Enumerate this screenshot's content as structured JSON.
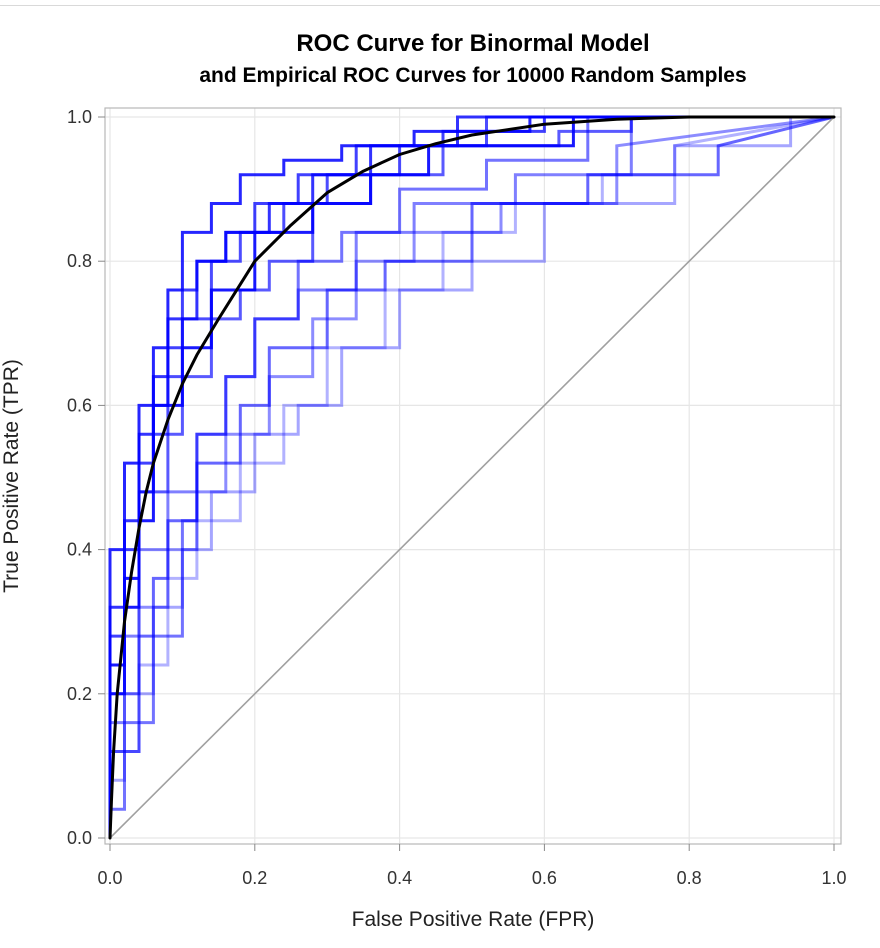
{
  "chart_data": {
    "type": "line",
    "title": "ROC Curve for Binormal Model",
    "subtitle": "and Empirical ROC Curves for 10000 Random Samples",
    "xlabel": "False Positive Rate (FPR)",
    "ylabel": "True Positive Rate (TPR)",
    "xlim": [
      0,
      1
    ],
    "ylim": [
      0,
      1
    ],
    "xticks": [
      "0.0",
      "0.2",
      "0.4",
      "0.6",
      "0.8",
      "1.0"
    ],
    "yticks": [
      "0.0",
      "0.2",
      "0.4",
      "0.6",
      "0.8",
      "1.0"
    ],
    "grid": true,
    "legend": "none",
    "colors": {
      "empirical": "#0000ff",
      "binormal": "#000000",
      "reference": "#a0a0a0",
      "grid": "#e6e6e6"
    },
    "series": [
      {
        "kind": "binormal",
        "x": [
          0,
          0.002,
          0.005,
          0.01,
          0.02,
          0.03,
          0.04,
          0.05,
          0.06,
          0.08,
          0.1,
          0.12,
          0.15,
          0.2,
          0.25,
          0.3,
          0.35,
          0.4,
          0.45,
          0.5,
          0.6,
          0.7,
          0.8,
          1.0
        ],
        "y": [
          0,
          0.05,
          0.12,
          0.2,
          0.3,
          0.37,
          0.43,
          0.48,
          0.52,
          0.58,
          0.63,
          0.67,
          0.72,
          0.8,
          0.85,
          0.895,
          0.925,
          0.948,
          0.963,
          0.975,
          0.99,
          0.997,
          1.0,
          1.0
        ]
      },
      {
        "kind": "reference",
        "x": [
          0,
          1
        ],
        "y": [
          0,
          1
        ]
      }
    ],
    "empirical_samples": [
      {
        "opacity": 0.7,
        "x": [
          0,
          0,
          0.02,
          0.02,
          0.04,
          0.04,
          0.06,
          0.06,
          0.08,
          0.08,
          0.1,
          0.1,
          0.14,
          0.14,
          0.18,
          0.18,
          0.24,
          0.24,
          0.3,
          0.3,
          0.4,
          0.4,
          0.52,
          0.52,
          1
        ],
        "y": [
          0,
          0.24,
          0.24,
          0.36,
          0.36,
          0.48,
          0.48,
          0.56,
          0.56,
          0.64,
          0.64,
          0.72,
          0.72,
          0.8,
          0.8,
          0.84,
          0.84,
          0.88,
          0.88,
          0.92,
          0.92,
          0.96,
          0.96,
          1,
          1
        ]
      },
      {
        "opacity": 0.5,
        "x": [
          0,
          0,
          0.02,
          0.02,
          0.04,
          0.04,
          0.08,
          0.08,
          0.12,
          0.12,
          0.16,
          0.16,
          0.2,
          0.2,
          0.26,
          0.26,
          0.34,
          0.34,
          0.42,
          0.42,
          0.56,
          0.56,
          0.72,
          0.72,
          1
        ],
        "y": [
          0,
          0.16,
          0.16,
          0.28,
          0.28,
          0.4,
          0.4,
          0.48,
          0.48,
          0.56,
          0.56,
          0.64,
          0.64,
          0.72,
          0.72,
          0.76,
          0.76,
          0.84,
          0.84,
          0.88,
          0.88,
          0.92,
          0.92,
          1,
          1
        ]
      },
      {
        "opacity": 0.8,
        "x": [
          0,
          0,
          0.02,
          0.02,
          0.04,
          0.04,
          0.06,
          0.06,
          0.08,
          0.08,
          0.12,
          0.12,
          0.16,
          0.16,
          0.22,
          0.22,
          0.28,
          0.28,
          0.36,
          0.36,
          0.48,
          0.48,
          1
        ],
        "y": [
          0,
          0.32,
          0.32,
          0.44,
          0.44,
          0.56,
          0.56,
          0.64,
          0.64,
          0.72,
          0.72,
          0.8,
          0.8,
          0.84,
          0.84,
          0.88,
          0.88,
          0.92,
          0.92,
          0.96,
          0.96,
          1,
          1
        ]
      },
      {
        "opacity": 0.35,
        "x": [
          0,
          0,
          0.02,
          0.02,
          0.06,
          0.06,
          0.1,
          0.1,
          0.14,
          0.14,
          0.2,
          0.2,
          0.26,
          0.26,
          0.32,
          0.32,
          0.4,
          0.4,
          0.5,
          0.5,
          0.6,
          0.6,
          0.78,
          0.78,
          0.94,
          0.94,
          1
        ],
        "y": [
          0,
          0.08,
          0.08,
          0.2,
          0.2,
          0.32,
          0.32,
          0.4,
          0.4,
          0.48,
          0.48,
          0.56,
          0.56,
          0.6,
          0.6,
          0.68,
          0.68,
          0.76,
          0.76,
          0.8,
          0.8,
          0.88,
          0.88,
          0.96,
          0.96,
          1,
          1
        ]
      },
      {
        "opacity": 0.9,
        "x": [
          0,
          0,
          0.02,
          0.02,
          0.04,
          0.04,
          0.06,
          0.06,
          0.1,
          0.1,
          0.14,
          0.14,
          0.2,
          0.2,
          0.28,
          0.28,
          0.36,
          0.36,
          0.44,
          0.44,
          0.64,
          0.64,
          1
        ],
        "y": [
          0,
          0.2,
          0.2,
          0.32,
          0.32,
          0.44,
          0.44,
          0.6,
          0.6,
          0.68,
          0.68,
          0.76,
          0.76,
          0.84,
          0.84,
          0.88,
          0.88,
          0.92,
          0.92,
          0.96,
          0.96,
          1,
          1
        ]
      },
      {
        "opacity": 0.6,
        "x": [
          0,
          0,
          0.04,
          0.04,
          0.06,
          0.06,
          0.08,
          0.08,
          0.12,
          0.12,
          0.18,
          0.18,
          0.22,
          0.22,
          0.3,
          0.3,
          0.38,
          0.38,
          0.5,
          0.5,
          0.66,
          0.66,
          0.84,
          0.84,
          1
        ],
        "y": [
          0,
          0.12,
          0.12,
          0.28,
          0.28,
          0.36,
          0.36,
          0.44,
          0.44,
          0.52,
          0.52,
          0.6,
          0.6,
          0.68,
          0.68,
          0.76,
          0.76,
          0.8,
          0.8,
          0.88,
          0.88,
          0.92,
          0.92,
          0.96,
          1
        ]
      },
      {
        "opacity": 0.75,
        "x": [
          0,
          0,
          0.02,
          0.02,
          0.04,
          0.04,
          0.06,
          0.06,
          0.08,
          0.08,
          0.1,
          0.1,
          0.12,
          0.12,
          0.16,
          0.16,
          0.2,
          0.2,
          0.26,
          0.26,
          0.34,
          0.34,
          0.46,
          0.46,
          0.6,
          0.6,
          1
        ],
        "y": [
          0,
          0.28,
          0.28,
          0.4,
          0.4,
          0.52,
          0.52,
          0.6,
          0.6,
          0.68,
          0.68,
          0.76,
          0.76,
          0.8,
          0.8,
          0.84,
          0.84,
          0.88,
          0.88,
          0.92,
          0.92,
          0.96,
          0.96,
          0.98,
          0.98,
          1,
          1
        ]
      },
      {
        "opacity": 0.45,
        "x": [
          0,
          0,
          0.04,
          0.04,
          0.08,
          0.08,
          0.12,
          0.12,
          0.16,
          0.16,
          0.22,
          0.22,
          0.28,
          0.28,
          0.34,
          0.34,
          0.42,
          0.42,
          0.54,
          0.54,
          0.7,
          0.7,
          1
        ],
        "y": [
          0,
          0.2,
          0.2,
          0.32,
          0.32,
          0.4,
          0.4,
          0.48,
          0.48,
          0.56,
          0.56,
          0.64,
          0.64,
          0.72,
          0.72,
          0.8,
          0.8,
          0.84,
          0.84,
          0.88,
          0.88,
          0.96,
          1
        ]
      },
      {
        "opacity": 0.85,
        "x": [
          0,
          0,
          0.02,
          0.02,
          0.04,
          0.04,
          0.06,
          0.06,
          0.08,
          0.08,
          0.1,
          0.1,
          0.14,
          0.14,
          0.18,
          0.18,
          0.24,
          0.24,
          0.32,
          0.32,
          0.42,
          0.42,
          0.58,
          0.58,
          1
        ],
        "y": [
          0,
          0.4,
          0.4,
          0.52,
          0.52,
          0.6,
          0.6,
          0.68,
          0.68,
          0.76,
          0.76,
          0.84,
          0.84,
          0.88,
          0.88,
          0.92,
          0.92,
          0.94,
          0.94,
          0.96,
          0.96,
          0.98,
          0.98,
          1,
          1
        ]
      },
      {
        "opacity": 0.3,
        "x": [
          0,
          0,
          0.04,
          0.04,
          0.08,
          0.08,
          0.12,
          0.12,
          0.18,
          0.18,
          0.24,
          0.24,
          0.3,
          0.3,
          0.38,
          0.38,
          0.46,
          0.46,
          0.56,
          0.56,
          0.68,
          0.68,
          0.78,
          0.78,
          1
        ],
        "y": [
          0,
          0.12,
          0.12,
          0.24,
          0.24,
          0.36,
          0.36,
          0.44,
          0.44,
          0.52,
          0.52,
          0.6,
          0.6,
          0.68,
          0.68,
          0.76,
          0.76,
          0.84,
          0.84,
          0.88,
          0.88,
          0.92,
          0.92,
          0.96,
          1
        ]
      },
      {
        "opacity": 0.65,
        "x": [
          0,
          0,
          0.02,
          0.02,
          0.04,
          0.04,
          0.08,
          0.08,
          0.1,
          0.1,
          0.14,
          0.14,
          0.18,
          0.18,
          0.22,
          0.22,
          0.28,
          0.28,
          0.36,
          0.36,
          0.46,
          0.46,
          0.62,
          0.62,
          0.72,
          0.72,
          1
        ],
        "y": [
          0,
          0.24,
          0.24,
          0.36,
          0.36,
          0.48,
          0.48,
          0.56,
          0.56,
          0.64,
          0.64,
          0.72,
          0.72,
          0.76,
          0.76,
          0.8,
          0.8,
          0.88,
          0.88,
          0.92,
          0.92,
          0.96,
          0.96,
          0.98,
          0.98,
          1,
          1
        ]
      },
      {
        "opacity": 0.55,
        "x": [
          0,
          0,
          0.02,
          0.02,
          0.06,
          0.06,
          0.1,
          0.1,
          0.12,
          0.12,
          0.16,
          0.16,
          0.2,
          0.2,
          0.26,
          0.26,
          0.32,
          0.32,
          0.4,
          0.4,
          0.52,
          0.52,
          0.66,
          0.66,
          1
        ],
        "y": [
          0,
          0.04,
          0.04,
          0.16,
          0.16,
          0.28,
          0.28,
          0.44,
          0.44,
          0.56,
          0.56,
          0.64,
          0.64,
          0.72,
          0.72,
          0.8,
          0.8,
          0.84,
          0.84,
          0.9,
          0.9,
          0.94,
          0.94,
          1,
          1
        ]
      }
    ]
  }
}
